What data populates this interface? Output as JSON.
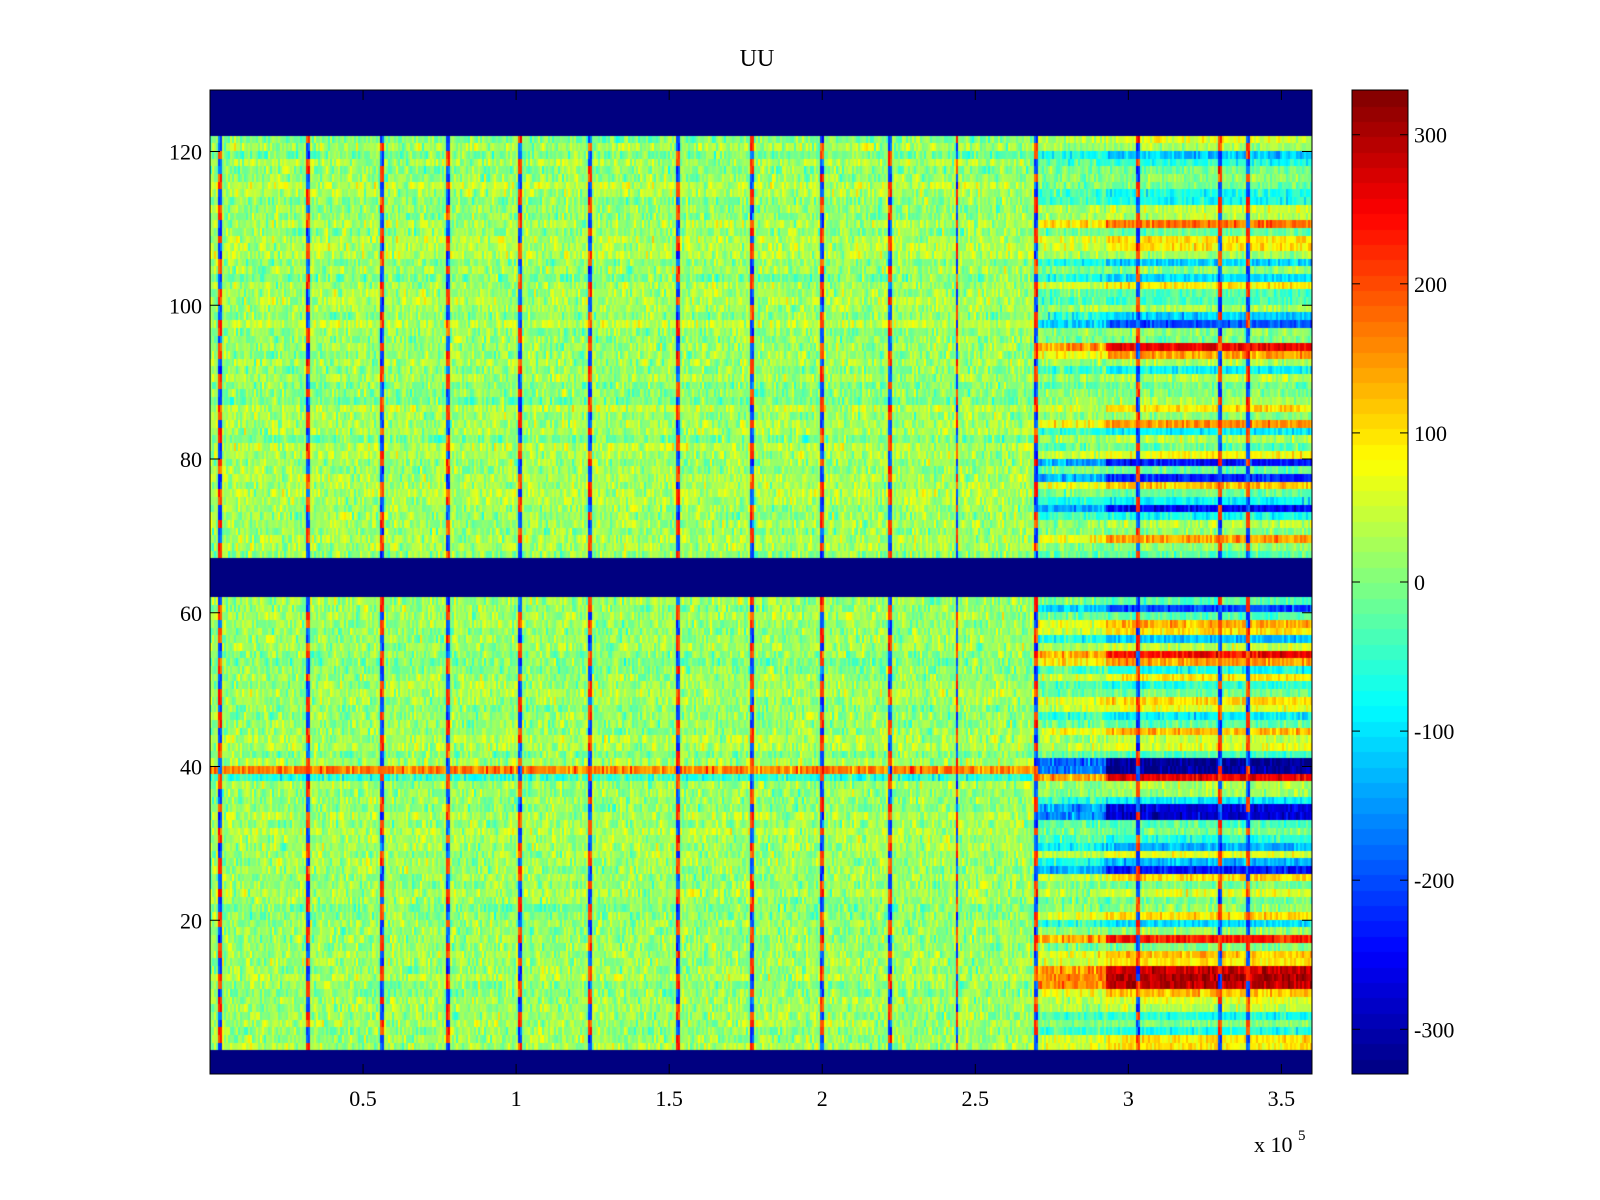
{
  "chart_data": {
    "type": "heatmap",
    "title": "UU",
    "xlabel": "",
    "ylabel": "",
    "x_exponent_label": "x 10",
    "x_exponent_power": "5",
    "xlim": [
      0,
      3.6
    ],
    "ylim": [
      0,
      128
    ],
    "x_ticks": [
      {
        "value": 0.5,
        "label": "0.5"
      },
      {
        "value": 1.0,
        "label": "1"
      },
      {
        "value": 1.5,
        "label": "1.5"
      },
      {
        "value": 2.0,
        "label": "2"
      },
      {
        "value": 2.5,
        "label": "2.5"
      },
      {
        "value": 3.0,
        "label": "3"
      },
      {
        "value": 3.5,
        "label": "3.5"
      }
    ],
    "y_ticks": [
      {
        "value": 20,
        "label": "20"
      },
      {
        "value": 40,
        "label": "40"
      },
      {
        "value": 60,
        "label": "60"
      },
      {
        "value": 80,
        "label": "80"
      },
      {
        "value": 100,
        "label": "100"
      },
      {
        "value": 120,
        "label": "120"
      }
    ],
    "colorbar": {
      "colormap": "jet",
      "clim": [
        -330,
        330
      ],
      "ticks": [
        {
          "value": 300,
          "label": "300"
        },
        {
          "value": 200,
          "label": "200"
        },
        {
          "value": 100,
          "label": "100"
        },
        {
          "value": 0,
          "label": "0"
        },
        {
          "value": -100,
          "label": "-100"
        },
        {
          "value": -200,
          "label": "-200"
        },
        {
          "value": -300,
          "label": "-300"
        }
      ]
    },
    "rows": 128,
    "masked_row_ranges": [
      [
        0,
        3
      ],
      [
        62,
        67
      ],
      [
        122,
        128
      ]
    ],
    "mask_value": -330,
    "vertical_spikes_x": [
      0.03,
      0.32,
      0.56,
      0.78,
      1.01,
      1.24,
      1.53,
      1.77,
      2.0,
      2.22,
      2.44,
      2.7,
      3.03,
      3.3,
      3.39
    ],
    "anomaly_segments": [
      {
        "x_start": 2.7,
        "x_end": 2.93,
        "style": "moderate"
      },
      {
        "x_start": 2.93,
        "x_end": 3.6,
        "style": "strong"
      }
    ],
    "strong_band_rows": [
      {
        "row": 12,
        "value": 300
      },
      {
        "row": 11,
        "value": 290
      },
      {
        "row": 13,
        "value": 280
      },
      {
        "row": 17,
        "value": 240
      },
      {
        "row": 26,
        "value": -240
      },
      {
        "row": 33,
        "value": -280
      },
      {
        "row": 34,
        "value": -270
      },
      {
        "row": 38,
        "value": 260
      },
      {
        "row": 39,
        "value": -310
      },
      {
        "row": 40,
        "value": -320
      },
      {
        "row": 54,
        "value": 250
      },
      {
        "row": 60,
        "value": -200
      },
      {
        "row": 73,
        "value": -250
      },
      {
        "row": 77,
        "value": -230
      },
      {
        "row": 79,
        "value": -240
      },
      {
        "row": 94,
        "value": 260
      },
      {
        "row": 97,
        "value": -190
      },
      {
        "row": 110,
        "value": 180
      },
      {
        "row": 119,
        "value": -120
      }
    ]
  }
}
